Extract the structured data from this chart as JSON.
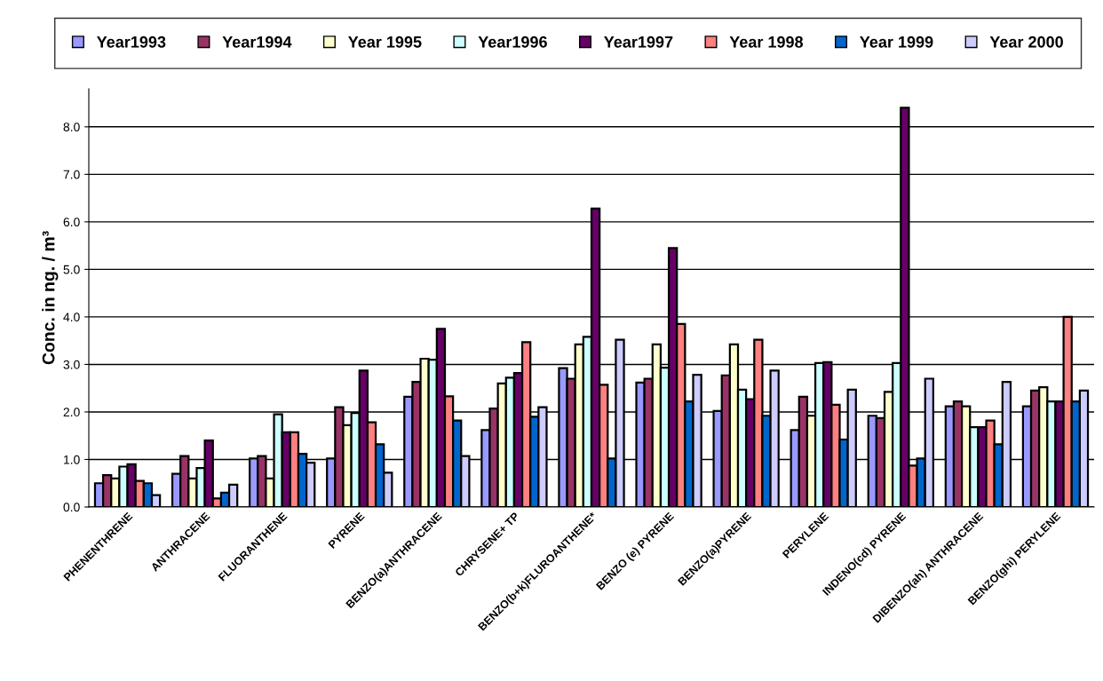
{
  "chart_data": {
    "type": "bar",
    "ylabel": "Conc. in ng. / m³",
    "categories": [
      "PHENENTHRENE",
      "ANTHRACENE",
      "FLUORANTHENE",
      "PYRENE",
      "BENZO(a)ANTHRACENE",
      "CHRYSENE+ TP",
      "BENZO(b+k)FLUROANTHENE*",
      "BENZO (e) PYRENE",
      "BENZO(a)PYRENE",
      "PERYLENE",
      "INDENO(cd) PYRENE",
      "DIBENZO(ah) ANTHRACENE",
      "BENZO(ghi) PERYLENE"
    ],
    "series": [
      {
        "name": "Year1993",
        "color": "#9999ff",
        "values": [
          0.5,
          0.7,
          1.02,
          1.02,
          2.32,
          1.62,
          2.92,
          2.62,
          2.02,
          1.62,
          1.92,
          2.12,
          2.12
        ]
      },
      {
        "name": "Year1994",
        "color": "#993366",
        "values": [
          0.67,
          1.07,
          1.07,
          2.1,
          2.63,
          2.07,
          2.7,
          2.7,
          2.77,
          2.32,
          1.87,
          2.22,
          2.45
        ]
      },
      {
        "name": "Year 1995",
        "color": "#ffffcc",
        "values": [
          0.6,
          0.6,
          0.6,
          1.72,
          3.12,
          2.6,
          3.42,
          3.42,
          3.42,
          1.92,
          2.42,
          2.12,
          2.52
        ]
      },
      {
        "name": "Year1996",
        "color": "#ccffff",
        "values": [
          0.85,
          0.82,
          1.95,
          1.98,
          3.1,
          2.72,
          3.58,
          2.93,
          2.47,
          3.03,
          3.03,
          1.68,
          2.22
        ]
      },
      {
        "name": "Year1997",
        "color": "#660066",
        "values": [
          0.9,
          1.4,
          1.57,
          2.87,
          3.75,
          2.82,
          6.28,
          5.45,
          2.27,
          3.05,
          8.4,
          1.68,
          2.22
        ]
      },
      {
        "name": "Year 1998",
        "color": "#ff8080",
        "values": [
          0.55,
          0.18,
          1.57,
          1.78,
          2.33,
          3.47,
          2.57,
          3.85,
          3.52,
          2.15,
          0.87,
          1.82,
          4.0
        ]
      },
      {
        "name": "Year 1999",
        "color": "#0066cc",
        "values": [
          0.5,
          0.3,
          1.12,
          1.32,
          1.82,
          1.9,
          1.02,
          2.22,
          1.92,
          1.42,
          1.02,
          1.32,
          2.22
        ]
      },
      {
        "name": "Year 2000",
        "color": "#ccccff",
        "values": [
          0.25,
          0.47,
          0.93,
          0.72,
          1.07,
          2.1,
          3.52,
          2.78,
          2.87,
          2.47,
          2.7,
          2.63,
          2.45
        ]
      }
    ],
    "ylim": [
      0,
      8.8
    ],
    "yticks": [
      {
        "value": 0,
        "label": "0.0"
      },
      {
        "value": 1,
        "label": "1.0"
      },
      {
        "value": 2,
        "label": "2.0"
      },
      {
        "value": 3,
        "label": "3.0"
      },
      {
        "value": 4,
        "label": "4.0"
      },
      {
        "value": 5,
        "label": "5.0"
      },
      {
        "value": 6,
        "label": "6.0"
      },
      {
        "value": 7,
        "label": "7.0"
      },
      {
        "value": 8,
        "label": "8.0"
      }
    ],
    "grid": "y",
    "legend": "top"
  }
}
